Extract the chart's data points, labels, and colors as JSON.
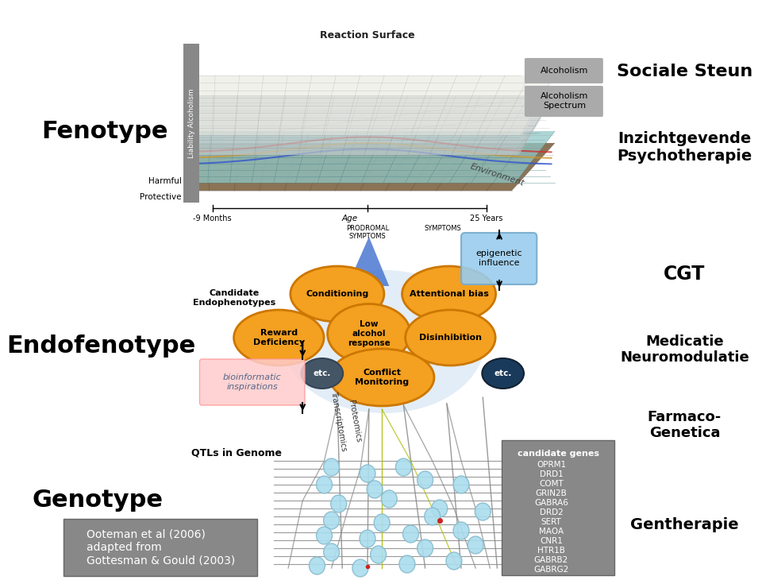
{
  "background_color": "#ffffff",
  "fenotype_label": "Fenotype",
  "endofenotype_label": "Endofenotype",
  "genotype_label": "Genotype",
  "sociale_steun": "Sociale Steun",
  "inzicht": "Inzichtgevende\nPsychotherapie",
  "cgt": "CGT",
  "medicatie": "Medicatie\nNeuromodulatie",
  "farmaco": "Farmaco-\nGenetica",
  "gentherapie": "Gentherapie",
  "reaction_surface": "Reaction Surface",
  "alcoholism": "Alcoholism",
  "alcoholism_spectrum": "Alcoholism\nSpectrum",
  "environment": "Environment",
  "harmful": "Harmful",
  "protective": "Protective",
  "age_label": "Age",
  "months_label": "-9 Months",
  "years_label": "25 Years",
  "prodromal": "PRODROMAL\nSYMPTOMS",
  "symptoms": "SYMPTOMS",
  "epigenetic": "epigenetic\ninfluence",
  "candidate_endophenotypes": "Candidate\nEndophenotypes",
  "bioinformatic": "bioinformatic\ninspirations",
  "qtls": "QTLs in Genome",
  "transcriptomics": "Transcriptomics",
  "proteomics": "Proteomics",
  "candidate_genes": "candidate genes",
  "genes_list": [
    "OPRM1",
    "DRD1",
    "COMT",
    "GRIN2B",
    "GABRA6",
    "DRD2",
    "SERT",
    "MAOA",
    "CNR1",
    "HTR1B",
    "GABRB2",
    "GABRG2"
  ],
  "liability_label": "Liability Alcoholism",
  "ooteman_text": "Ooteman et al (2006)\nadapted from\nGottesman & Gould (2003)"
}
